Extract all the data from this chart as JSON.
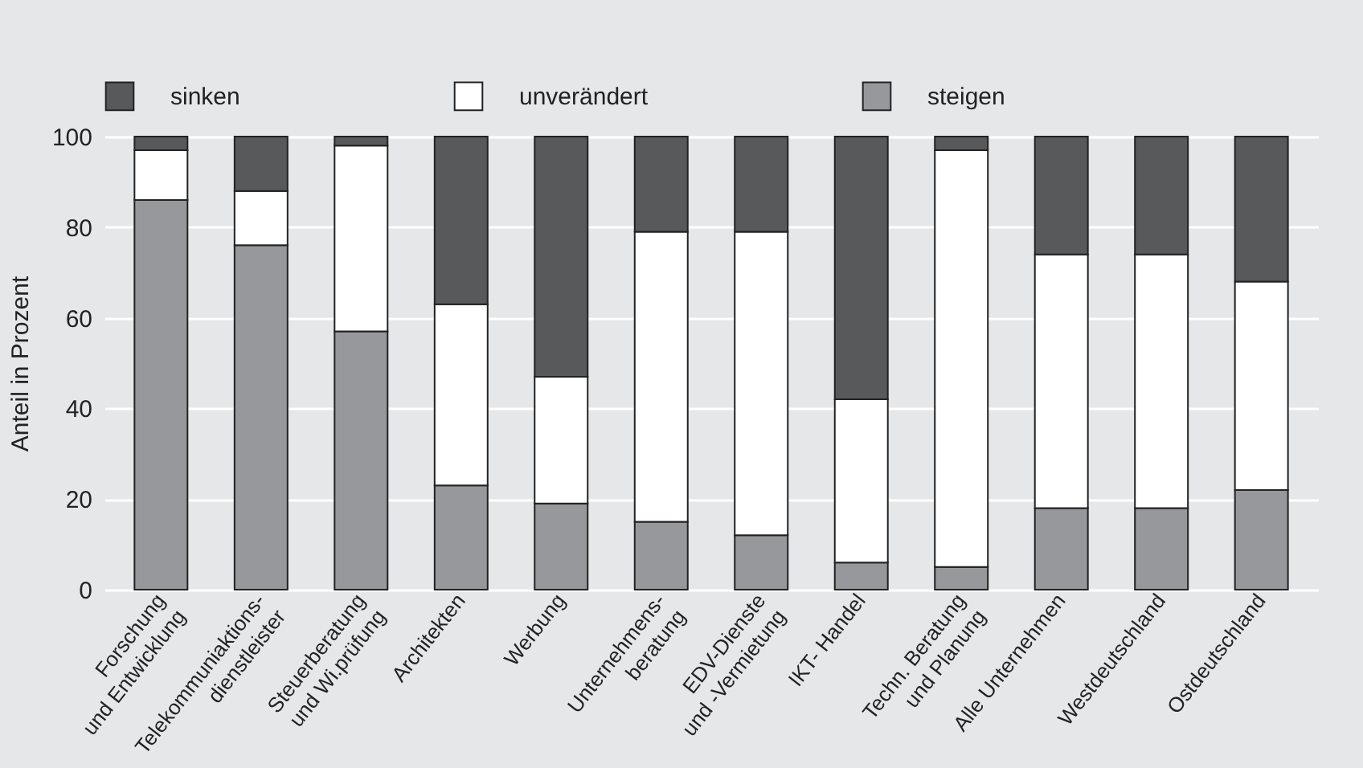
{
  "chart_data": {
    "type": "bar",
    "stacked": true,
    "ylabel": "Anteil in Prozent",
    "categories": [
      "Forschung\nund Entwicklung",
      "Telekommuniaktions-\ndienstleister",
      "Steuerberatung\nund Wi.prüfung",
      "Architekten",
      "Werbung",
      "Unternehmens-\nberatung",
      "EDV-Dienste\nund -Vermietung",
      "IKT- Handel",
      "Techn. Beratung\nund Planung",
      "Alle Unternehmen",
      "Westdeutschland",
      "Ostdeutschland"
    ],
    "series": [
      {
        "name": "steigen",
        "color": "#97989c",
        "values": [
          86,
          76,
          57,
          23,
          19,
          15,
          12,
          6,
          5,
          18,
          18,
          22
        ]
      },
      {
        "name": "unverändert",
        "color": "#ffffff",
        "values": [
          11,
          12,
          41,
          40,
          28,
          64,
          67,
          36,
          92,
          56,
          56,
          46
        ]
      },
      {
        "name": "sinken",
        "color": "#58595b",
        "values": [
          3,
          12,
          2,
          37,
          53,
          21,
          21,
          58,
          3,
          26,
          26,
          32
        ]
      }
    ],
    "ylim": [
      0,
      100
    ],
    "yticks": [
      0,
      20,
      40,
      60,
      80,
      100
    ],
    "grid": "y",
    "legend": "top"
  }
}
